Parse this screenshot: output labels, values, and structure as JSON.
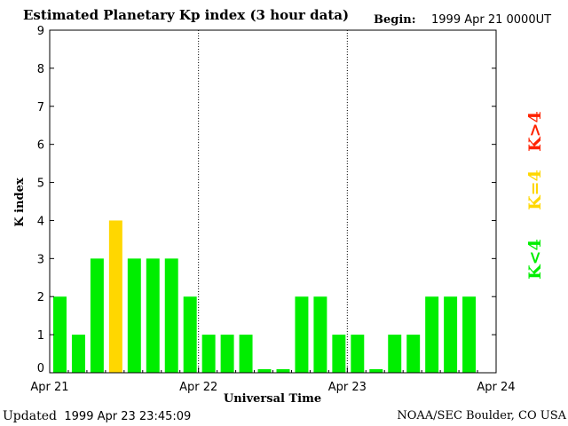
{
  "header": {
    "title": "Estimated Planetary Kp index (3 hour data)",
    "begin_label": "Begin:",
    "begin_value": "1999 Apr 21 0000UT"
  },
  "footer": {
    "updated_label": "Updated",
    "updated_value": "1999 Apr 23 23:45:09",
    "credit": "NOAA/SEC Boulder, CO USA"
  },
  "legend": [
    {
      "label": "K<4",
      "color": "#00ee00"
    },
    {
      "label": "K=4",
      "color": "#ffd700"
    },
    {
      "label": "K>4",
      "color": "#ff2200"
    }
  ],
  "chart_data": {
    "type": "bar",
    "xlabel": "Universal Time",
    "ylabel": "K index",
    "ylim": [
      0,
      9
    ],
    "yticks": [
      0,
      1,
      2,
      3,
      4,
      5,
      6,
      7,
      8,
      9
    ],
    "xticks": [
      "Apr 21",
      "Apr 22",
      "Apr 23",
      "Apr 24"
    ],
    "bar_interval_hours": 3,
    "day_dividers": "dotted",
    "colors": {
      "below_4": "#00ee00",
      "equal_4": "#ffd700",
      "above_4": "#ff2200"
    },
    "values": [
      2,
      1,
      3,
      4,
      3,
      3,
      3,
      2,
      1,
      1,
      1,
      0,
      0,
      2,
      2,
      1,
      1,
      0,
      1,
      1,
      2,
      2,
      2
    ]
  }
}
